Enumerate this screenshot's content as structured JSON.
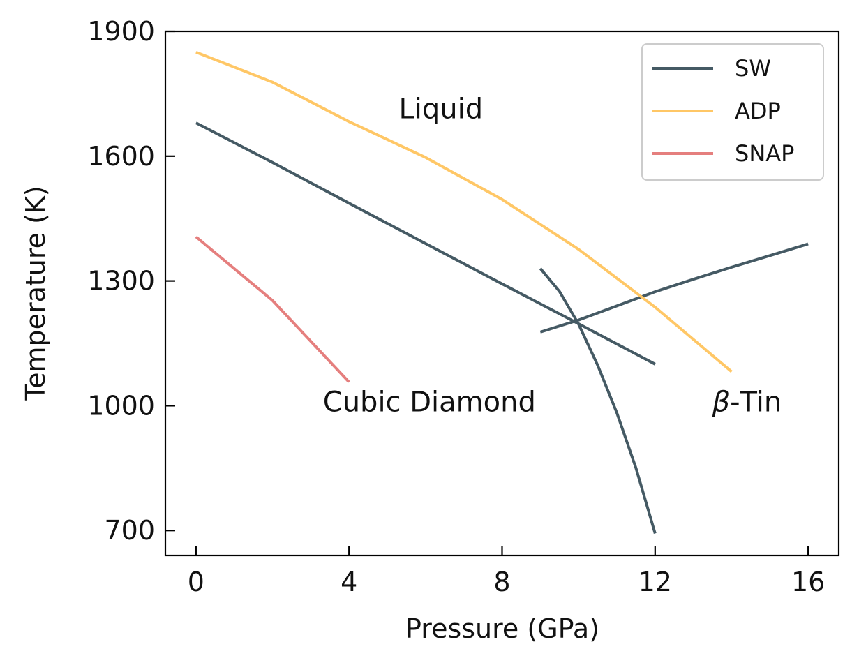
{
  "chart_data": {
    "type": "line",
    "title": "",
    "xlabel": "Pressure (GPa)",
    "ylabel": "Temperature (K)",
    "xlim": [
      -0.8,
      16.8
    ],
    "ylim": [
      640,
      1900
    ],
    "xticks": [
      0,
      4,
      8,
      12,
      16
    ],
    "yticks": [
      700,
      1000,
      1300,
      1600,
      1900
    ],
    "grid": false,
    "legend_position": "top-right",
    "legend": [
      "SW",
      "ADP",
      "SNAP"
    ],
    "series": [
      {
        "name": "SW",
        "color": "#455a64",
        "segments": [
          {
            "x": [
              0,
              2,
              4,
              6,
              8,
              10,
              12
            ],
            "y": [
              1680,
              1585,
              1487,
              1390,
              1293,
              1197,
              1100
            ]
          },
          {
            "x": [
              9,
              10,
              11,
              12,
              13,
              14,
              15,
              16
            ],
            "y": [
              1177,
              1206,
              1240,
              1274,
              1304,
              1333,
              1361,
              1389
            ]
          },
          {
            "x": [
              9,
              9.5,
              10,
              10.5,
              11,
              11.5,
              12
            ],
            "y": [
              1330,
              1275,
              1196,
              1097,
              983,
              850,
              693
            ]
          }
        ]
      },
      {
        "name": "ADP",
        "color": "#ffc766",
        "segments": [
          {
            "x": [
              0,
              2,
              4,
              6,
              8,
              10,
              12,
              14
            ],
            "y": [
              1850,
              1778,
              1683,
              1597,
              1496,
              1376,
              1237,
              1082
            ]
          }
        ]
      },
      {
        "name": "SNAP",
        "color": "#e57f7e",
        "segments": [
          {
            "x": [
              0,
              2,
              4
            ],
            "y": [
              1406,
              1253,
              1057
            ]
          }
        ]
      }
    ],
    "annotations": [
      {
        "text": "Liquid",
        "x": 6.4,
        "y": 1715
      },
      {
        "text": "Cubic Diamond",
        "x": 6.1,
        "y": 1010
      },
      {
        "text": "β-Tin",
        "x": 14.4,
        "y": 1010
      }
    ]
  }
}
